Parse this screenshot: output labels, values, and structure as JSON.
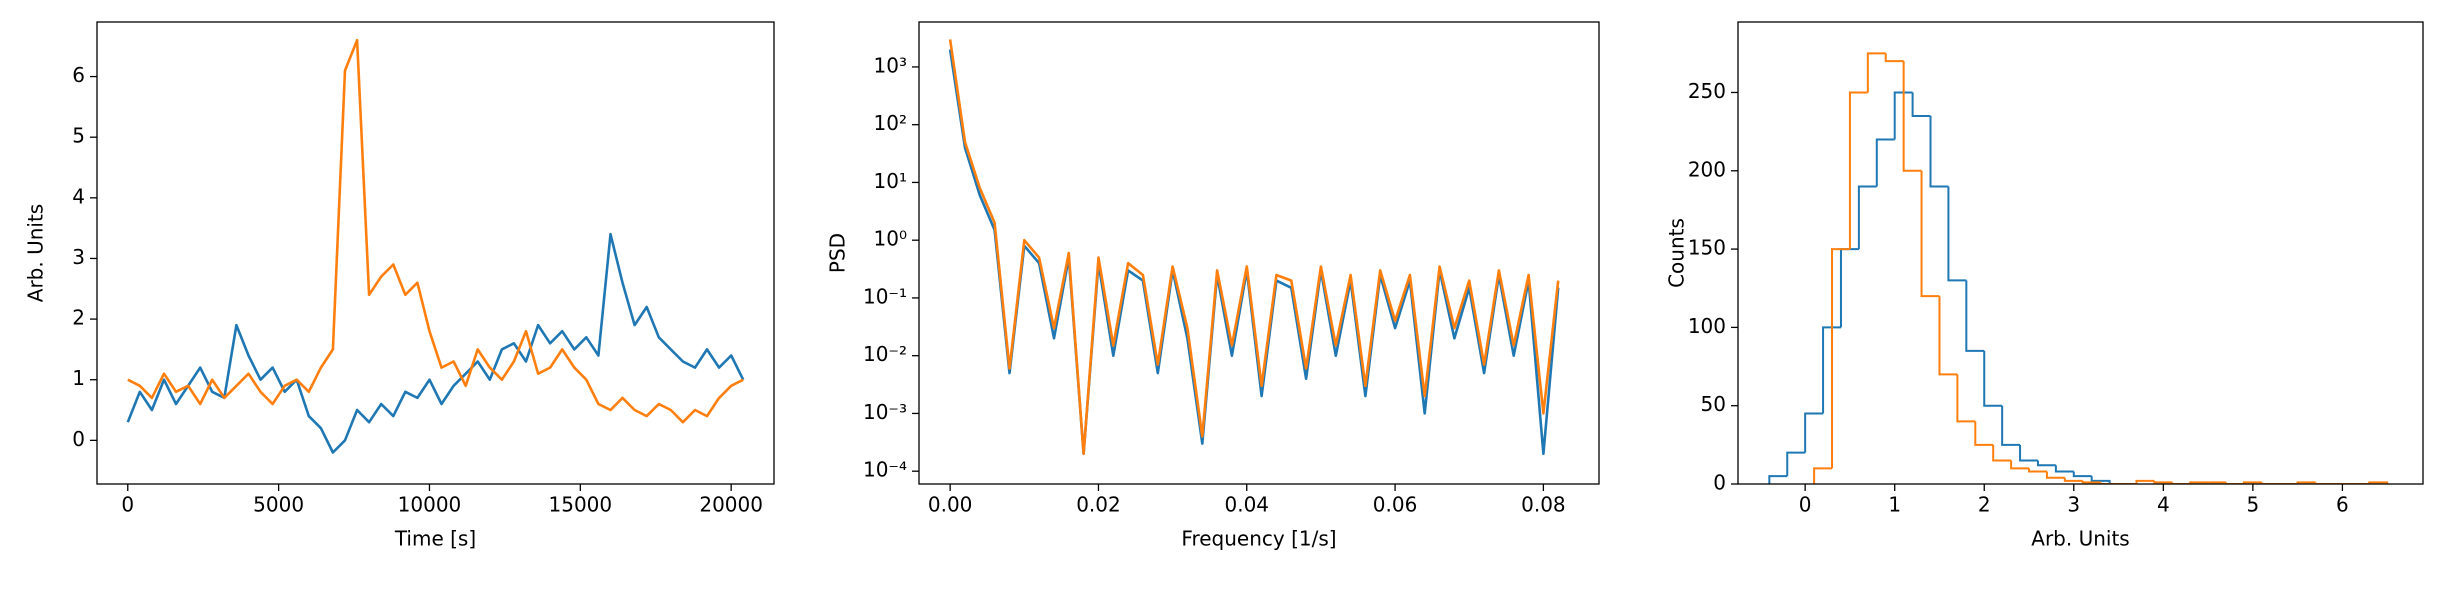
{
  "chart_data": [
    {
      "type": "line",
      "xlabel": "Time [s]",
      "ylabel": "Arb. Units",
      "x": [
        0,
        400,
        800,
        1200,
        1600,
        2000,
        2400,
        2800,
        3200,
        3600,
        4000,
        4400,
        4800,
        5200,
        5600,
        6000,
        6400,
        6800,
        7200,
        7600,
        8000,
        8400,
        8800,
        9200,
        9600,
        10000,
        10400,
        10800,
        11200,
        11600,
        12000,
        12400,
        12800,
        13200,
        13600,
        14000,
        14400,
        14800,
        15200,
        15600,
        16000,
        16400,
        16800,
        17200,
        17600,
        18000,
        18400,
        18800,
        19200,
        19600,
        20000,
        20400
      ],
      "series": [
        {
          "color": "#1f77b4",
          "values": [
            0.3,
            0.8,
            0.5,
            1.0,
            0.6,
            0.9,
            1.2,
            0.8,
            0.7,
            1.9,
            1.4,
            1.0,
            1.2,
            0.8,
            1.0,
            0.4,
            0.2,
            -0.2,
            0.0,
            0.5,
            0.3,
            0.6,
            0.4,
            0.8,
            0.7,
            1.0,
            0.6,
            0.9,
            1.1,
            1.3,
            1.0,
            1.5,
            1.6,
            1.3,
            1.9,
            1.6,
            1.8,
            1.5,
            1.7,
            1.4,
            3.4,
            2.6,
            1.9,
            2.2,
            1.7,
            1.5,
            1.3,
            1.2,
            1.5,
            1.2,
            1.4,
            1.0
          ]
        },
        {
          "color": "#ff7f0e",
          "values": [
            1.0,
            0.9,
            0.7,
            1.1,
            0.8,
            0.9,
            0.6,
            1.0,
            0.7,
            0.9,
            1.1,
            0.8,
            0.6,
            0.9,
            1.0,
            0.8,
            1.2,
            1.5,
            6.1,
            6.6,
            2.4,
            2.7,
            2.9,
            2.4,
            2.6,
            1.8,
            1.2,
            1.3,
            0.9,
            1.5,
            1.2,
            1.0,
            1.3,
            1.8,
            1.1,
            1.2,
            1.5,
            1.2,
            1.0,
            0.6,
            0.5,
            0.7,
            0.5,
            0.4,
            0.6,
            0.5,
            0.3,
            0.5,
            0.4,
            0.7,
            0.9,
            1.0
          ]
        }
      ],
      "xlim": [
        -1020,
        21420
      ],
      "ylim": [
        -0.72,
        6.9
      ],
      "xticks": [
        0,
        5000,
        10000,
        15000,
        20000
      ],
      "yticks": [
        0,
        1,
        2,
        3,
        4,
        5,
        6
      ]
    },
    {
      "type": "line",
      "xlabel": "Frequency [1/s]",
      "ylabel": "PSD",
      "log_y": true,
      "x": [
        0,
        0.002,
        0.004,
        0.006,
        0.008,
        0.01,
        0.012,
        0.014,
        0.016,
        0.018,
        0.02,
        0.022,
        0.024,
        0.026,
        0.028,
        0.03,
        0.032,
        0.034,
        0.036,
        0.038,
        0.04,
        0.042,
        0.044,
        0.046,
        0.048,
        0.05,
        0.052,
        0.054,
        0.056,
        0.058,
        0.06,
        0.062,
        0.064,
        0.066,
        0.068,
        0.07,
        0.072,
        0.074,
        0.076,
        0.078,
        0.08,
        0.082
      ],
      "series": [
        {
          "color": "#1f77b4",
          "values": [
            2000,
            40,
            6,
            1.5,
            0.005,
            0.8,
            0.4,
            0.02,
            0.5,
            0.0002,
            0.4,
            0.01,
            0.3,
            0.2,
            0.005,
            0.3,
            0.02,
            0.0003,
            0.25,
            0.01,
            0.3,
            0.002,
            0.2,
            0.15,
            0.004,
            0.3,
            0.01,
            0.2,
            0.002,
            0.25,
            0.03,
            0.2,
            0.001,
            0.3,
            0.02,
            0.15,
            0.005,
            0.25,
            0.01,
            0.2,
            0.0002,
            0.15
          ]
        },
        {
          "color": "#ff7f0e",
          "values": [
            3000,
            50,
            8,
            2,
            0.006,
            1,
            0.5,
            0.03,
            0.6,
            0.0002,
            0.5,
            0.015,
            0.4,
            0.25,
            0.007,
            0.35,
            0.03,
            0.0004,
            0.3,
            0.015,
            0.35,
            0.003,
            0.25,
            0.2,
            0.006,
            0.35,
            0.015,
            0.25,
            0.003,
            0.3,
            0.04,
            0.25,
            0.002,
            0.35,
            0.03,
            0.2,
            0.007,
            0.3,
            0.015,
            0.25,
            0.001,
            0.2
          ]
        }
      ],
      "xlim": [
        -0.0042,
        0.0875
      ],
      "ylim": [
        6e-05,
        6000
      ],
      "xticks": [
        {
          "value": 0,
          "label": "0.00"
        },
        0.02,
        0.04,
        0.06,
        0.08
      ],
      "yticks": [
        {
          "value": 0.0001,
          "label": "10⁻⁴"
        },
        {
          "value": 0.001,
          "label": "10⁻³"
        },
        {
          "value": 0.01,
          "label": "10⁻²"
        },
        {
          "value": 0.1,
          "label": "10⁻¹"
        },
        {
          "value": 1,
          "label": "10⁰"
        },
        {
          "value": 10,
          "label": "10¹"
        },
        {
          "value": 100,
          "label": "10²"
        },
        {
          "value": 1000,
          "label": "10³"
        }
      ]
    },
    {
      "type": "histogram",
      "xlabel": "Arb. Units",
      "ylabel": "Counts",
      "series": [
        {
          "color": "#1f77b4",
          "bins": [
            -0.4,
            -0.2,
            0,
            0.2,
            0.4,
            0.6,
            0.8,
            1.0,
            1.2,
            1.4,
            1.6,
            1.8,
            2.0,
            2.2,
            2.4,
            2.6,
            2.8,
            3.0,
            3.2,
            3.4
          ],
          "values": [
            5,
            20,
            45,
            100,
            150,
            190,
            220,
            250,
            235,
            190,
            130,
            85,
            50,
            25,
            15,
            12,
            8,
            5,
            2
          ]
        },
        {
          "color": "#ff7f0e",
          "bins": [
            0.1,
            0.3,
            0.5,
            0.7,
            0.9,
            1.1,
            1.3,
            1.5,
            1.7,
            1.9,
            2.1,
            2.3,
            2.5,
            2.7,
            2.9,
            3.1,
            3.3,
            3.5,
            3.7,
            3.9,
            4.1,
            4.3,
            4.5,
            4.7,
            4.9,
            5.1,
            5.3,
            5.5,
            5.7,
            5.9,
            6.1,
            6.3,
            6.5
          ],
          "values": [
            10,
            150,
            250,
            275,
            270,
            200,
            120,
            70,
            40,
            25,
            15,
            10,
            8,
            4,
            2,
            1,
            0,
            0,
            2,
            1,
            0,
            1,
            1,
            0,
            1,
            0,
            0,
            1,
            0,
            0,
            0,
            1
          ]
        }
      ],
      "xlim": [
        -0.75,
        6.9
      ],
      "ylim": [
        0,
        295
      ],
      "xticks": [
        0,
        1,
        2,
        3,
        4,
        5,
        6
      ],
      "yticks": [
        0,
        50,
        100,
        150,
        200,
        250
      ]
    }
  ]
}
